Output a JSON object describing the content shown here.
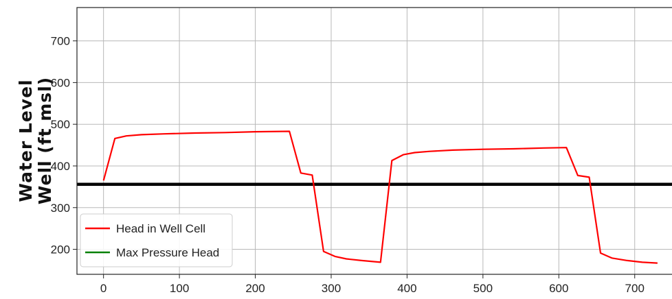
{
  "chart_data": {
    "type": "line",
    "title": "",
    "xlabel": "",
    "ylabel_lines": [
      "Water Level",
      "Well (ft msl)"
    ],
    "xlim": [
      -35,
      760
    ],
    "ylim": [
      140,
      780
    ],
    "x_ticks": [
      0,
      100,
      200,
      300,
      400,
      500,
      600,
      700
    ],
    "y_ticks": [
      200,
      300,
      400,
      500,
      600,
      700
    ],
    "grid": true,
    "legend_placement": "lower-left",
    "series": [
      {
        "name": "Head in Well Cell",
        "color": "#ff0000",
        "x": [
          0,
          15,
          30,
          50,
          80,
          120,
          160,
          200,
          245,
          260,
          275,
          290,
          305,
          320,
          340,
          365,
          380,
          395,
          410,
          430,
          460,
          500,
          540,
          580,
          610,
          625,
          640,
          655,
          670,
          690,
          710,
          730
        ],
        "y": [
          365,
          466,
          472,
          475,
          477,
          479,
          480,
          482,
          483,
          383,
          378,
          195,
          183,
          177,
          173,
          169,
          413,
          427,
          432,
          435,
          438,
          440,
          441,
          443,
          444,
          377,
          373,
          191,
          179,
          173,
          169,
          167
        ]
      },
      {
        "name": "Max Pressure Head",
        "color": "#008000",
        "x": [],
        "y": []
      }
    ],
    "reference_line": {
      "y": 356,
      "color": "#000000"
    }
  }
}
